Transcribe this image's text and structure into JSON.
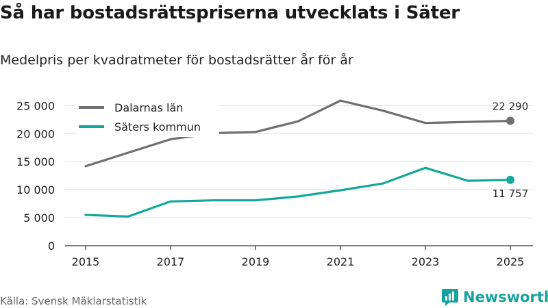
{
  "page": {
    "title": "Så har bostadsrättspriserna utvecklats i Säter",
    "subtitle": "Medelpris per kvadratmeter för bostadsrätter år för år",
    "source": "Källa: Svensk Mäklarstatistik",
    "brand": "Newsworthy"
  },
  "colors": {
    "dalarna": "#6f6e73",
    "sater": "#13a69a",
    "grid": "#dcdcdc",
    "axis": "#333333",
    "brand": "#17a2a0"
  },
  "chart_data": {
    "type": "line",
    "title": "Så har bostadsrättspriserna utvecklats i Säter",
    "subtitle": "Medelpris per kvadratmeter för bostadsrätter år för år",
    "xlabel": "",
    "ylabel": "",
    "xlim": [
      2015,
      2025
    ],
    "ylim": [
      0,
      27000
    ],
    "x_ticks": [
      "2015",
      "2017",
      "2019",
      "2021",
      "2023",
      "2025"
    ],
    "y_ticks": [
      0,
      5000,
      10000,
      15000,
      20000,
      25000
    ],
    "y_tick_labels": [
      "0",
      "5 000",
      "10 000",
      "15 000",
      "20 000",
      "25 000"
    ],
    "grid": true,
    "legend_position": "top-left",
    "x": [
      2015,
      2016,
      2017,
      2018,
      2019,
      2020,
      2021,
      2022,
      2023,
      2024,
      2025
    ],
    "series": [
      {
        "name": "Dalarnas län",
        "color": "#6f6e73",
        "values": [
          14200,
          16600,
          19000,
          20100,
          20300,
          22200,
          25900,
          24100,
          21900,
          22100,
          22290
        ],
        "end_label": "22 290"
      },
      {
        "name": "Säters kommun",
        "color": "#13a69a",
        "values": [
          5500,
          5200,
          7900,
          8100,
          8100,
          8800,
          9900,
          11100,
          13900,
          11600,
          11757
        ],
        "end_label": "11 757"
      }
    ]
  }
}
